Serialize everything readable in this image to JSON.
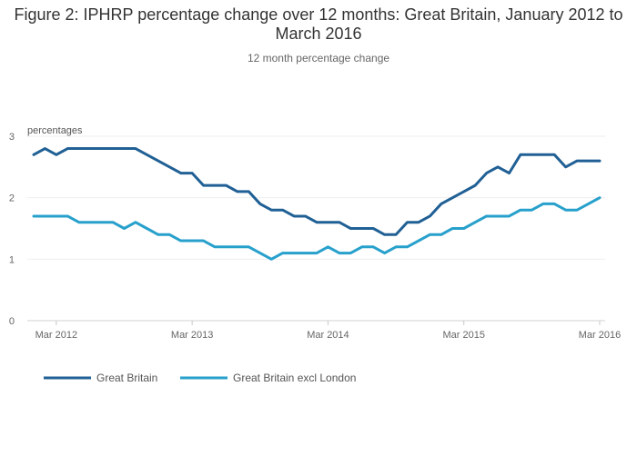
{
  "chart_data": {
    "type": "line",
    "title": "Figure 2: IPHRP percentage change over 12 months: Great Britain, January 2012 to March 2016",
    "subtitle": "12 month percentage change",
    "ylabel": "percentages",
    "xlabel": "",
    "ylim": [
      0,
      3
    ],
    "yticks": [
      0,
      1,
      2,
      3
    ],
    "x_tick_labels": [
      "Mar 2012",
      "Mar 2013",
      "Mar 2014",
      "Mar 2015",
      "Mar 2016"
    ],
    "x_start": "Jan 2012",
    "x_end": "Mar 2016",
    "grid": true,
    "legend_position": "bottom",
    "series": [
      {
        "name": "Great Britain",
        "color": "#206095",
        "values": [
          2.7,
          2.8,
          2.7,
          2.8,
          2.8,
          2.8,
          2.8,
          2.8,
          2.8,
          2.8,
          2.7,
          2.6,
          2.5,
          2.4,
          2.4,
          2.2,
          2.2,
          2.2,
          2.1,
          2.1,
          1.9,
          1.8,
          1.8,
          1.7,
          1.7,
          1.6,
          1.6,
          1.6,
          1.5,
          1.5,
          1.5,
          1.4,
          1.4,
          1.6,
          1.6,
          1.7,
          1.9,
          2.0,
          2.1,
          2.2,
          2.4,
          2.5,
          2.4,
          2.7,
          2.7,
          2.7,
          2.7,
          2.5,
          2.6,
          2.6,
          2.6
        ]
      },
      {
        "name": "Great Britain excl London",
        "color": "#27a0cc",
        "values": [
          1.7,
          1.7,
          1.7,
          1.7,
          1.6,
          1.6,
          1.6,
          1.6,
          1.5,
          1.6,
          1.5,
          1.4,
          1.4,
          1.3,
          1.3,
          1.3,
          1.2,
          1.2,
          1.2,
          1.2,
          1.1,
          1.0,
          1.1,
          1.1,
          1.1,
          1.1,
          1.2,
          1.1,
          1.1,
          1.2,
          1.2,
          1.1,
          1.2,
          1.2,
          1.3,
          1.4,
          1.4,
          1.5,
          1.5,
          1.6,
          1.7,
          1.7,
          1.7,
          1.8,
          1.8,
          1.9,
          1.9,
          1.8,
          1.8,
          1.9,
          2.0
        ]
      }
    ]
  }
}
